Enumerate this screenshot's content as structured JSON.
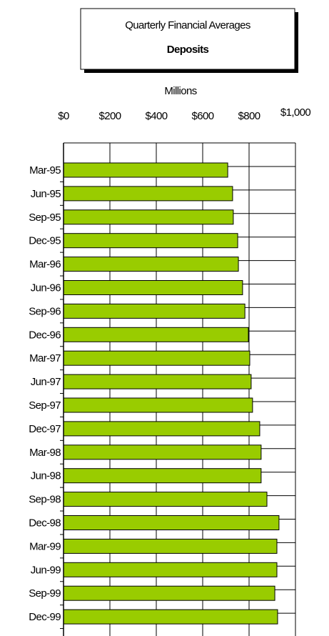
{
  "chart_data": {
    "type": "barh",
    "title": "Quarterly Financial Averages",
    "subtitle": "Deposits",
    "x_label": "Millions",
    "categories": [
      "Mar-95",
      "Jun-95",
      "Sep-95",
      "Dec-95",
      "Mar-96",
      "Jun-96",
      "Sep-96",
      "Dec-96",
      "Mar-97",
      "Jun-97",
      "Sep-97",
      "Dec-97",
      "Mar-98",
      "Jun-98",
      "Sep-98",
      "Dec-98",
      "Mar-99",
      "Jun-99",
      "Sep-99",
      "Dec-99"
    ],
    "values": [
      708,
      729,
      732,
      751,
      754,
      772,
      782,
      797,
      803,
      809,
      815,
      846,
      852,
      852,
      877,
      929,
      920,
      920,
      911,
      923
    ],
    "color": "#99cc00",
    "xlim": [
      0,
      1000
    ],
    "xticks": [
      {
        "value": 0,
        "label": "$0"
      },
      {
        "value": 200,
        "label": "$200"
      },
      {
        "value": 400,
        "label": "$400"
      },
      {
        "value": 600,
        "label": "$600"
      },
      {
        "value": 800,
        "label": "$800"
      },
      {
        "value": 1000,
        "label": "$1,000"
      }
    ],
    "grid": true
  }
}
